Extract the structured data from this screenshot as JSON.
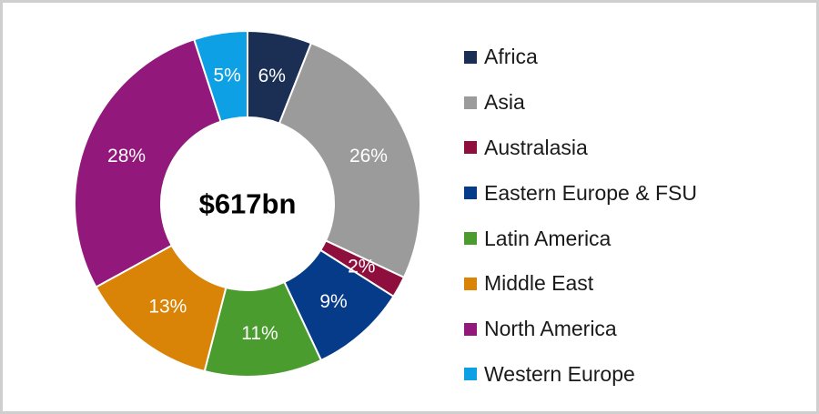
{
  "chart_data": {
    "type": "pie",
    "donut": true,
    "center_text": "$617bn",
    "categories": [
      "Africa",
      "Asia",
      "Australasia",
      "Eastern Europe & FSU",
      "Latin America",
      "Middle East",
      "North America",
      "Western Europe"
    ],
    "values": [
      6,
      26,
      2,
      9,
      11,
      13,
      28,
      5
    ],
    "labels": [
      "6%",
      "26%",
      "2%",
      "9%",
      "11%",
      "13%",
      "28%",
      "5%"
    ],
    "colors": [
      "#1b2f55",
      "#9b9b9b",
      "#8e0f3d",
      "#063b8a",
      "#4a9c2f",
      "#d98406",
      "#92187b",
      "#0ea0e4"
    ],
    "legend_position": "right"
  }
}
